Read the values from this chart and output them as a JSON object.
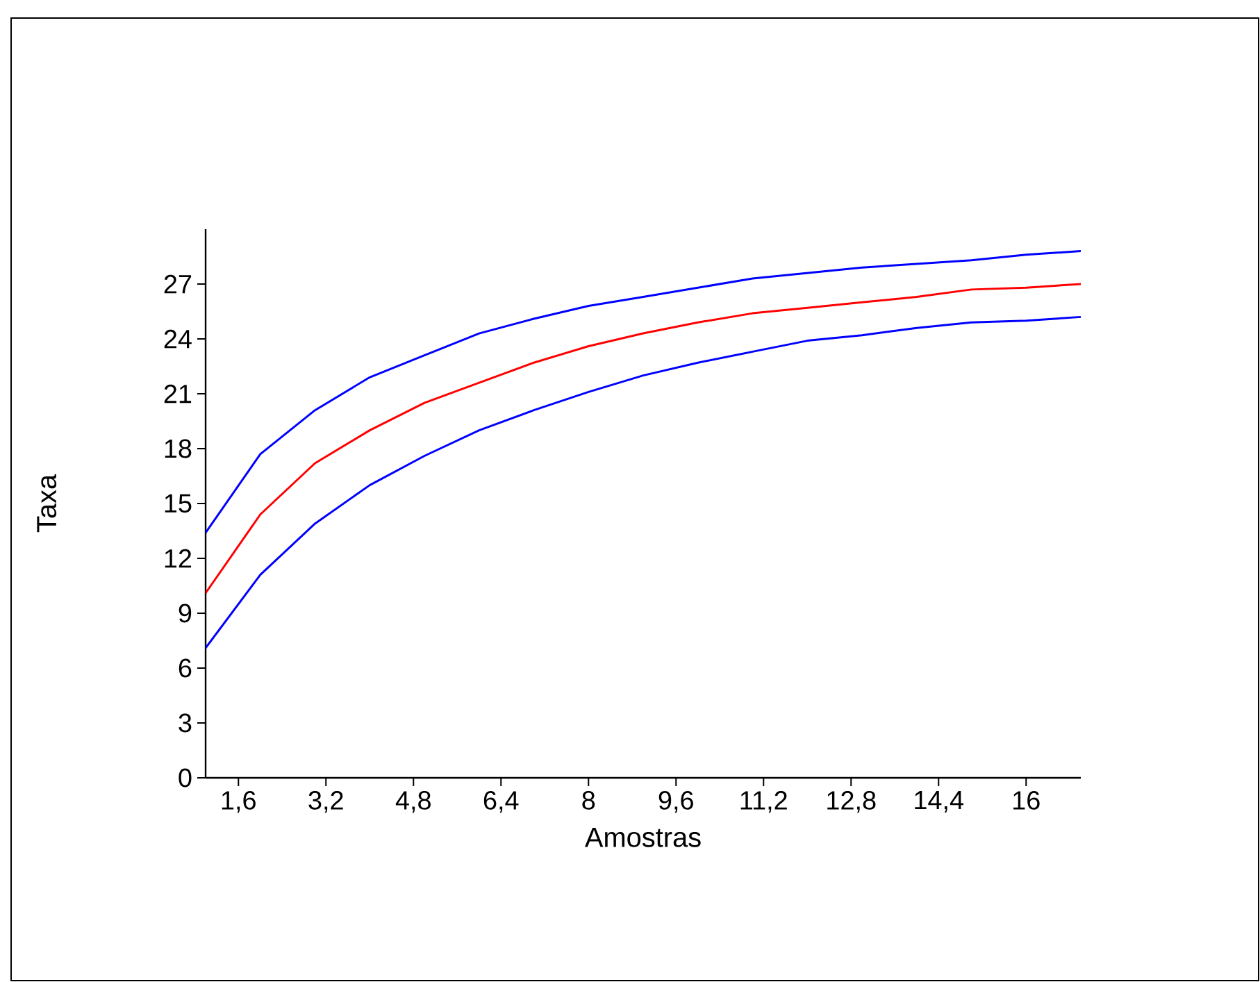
{
  "chart_data": {
    "type": "line",
    "xlabel": "Amostras",
    "ylabel": "Taxa",
    "x": [
      1,
      2,
      3,
      4,
      5,
      6,
      7,
      8,
      9,
      10,
      11,
      12,
      13,
      14,
      15,
      16,
      17
    ],
    "series": [
      {
        "color": "#0000ff",
        "values": [
          13.4,
          17.7,
          20.1,
          21.9,
          23.1,
          24.3,
          25.1,
          25.8,
          26.3,
          26.8,
          27.3,
          27.6,
          27.9,
          28.1,
          28.3,
          28.6,
          28.8
        ]
      },
      {
        "color": "#ff0000",
        "values": [
          10.1,
          14.4,
          17.2,
          19.0,
          20.5,
          21.6,
          22.7,
          23.6,
          24.3,
          24.9,
          25.4,
          25.7,
          26.0,
          26.3,
          26.7,
          26.8,
          27.0
        ]
      },
      {
        "color": "#0000ff",
        "values": [
          7.1,
          11.1,
          13.9,
          16.0,
          17.6,
          19.0,
          20.1,
          21.1,
          22.0,
          22.7,
          23.3,
          23.9,
          24.2,
          24.6,
          24.9,
          25.0,
          25.2
        ]
      }
    ],
    "xlim": [
      1,
      17
    ],
    "ylim": [
      0,
      30
    ],
    "xticks": [
      {
        "value": 1.6,
        "label": "1,6"
      },
      {
        "value": 3.2,
        "label": "3,2"
      },
      {
        "value": 4.8,
        "label": "4,8"
      },
      {
        "value": 6.4,
        "label": "6,4"
      },
      {
        "value": 8,
        "label": "8"
      },
      {
        "value": 9.6,
        "label": "9,6"
      },
      {
        "value": 11.2,
        "label": "11,2"
      },
      {
        "value": 12.8,
        "label": "12,8"
      },
      {
        "value": 14.4,
        "label": "14,4"
      },
      {
        "value": 16,
        "label": "16"
      }
    ],
    "yticks": [
      0,
      3,
      6,
      9,
      12,
      15,
      18,
      21,
      24,
      27
    ],
    "grid": false,
    "line_style": "solid"
  }
}
